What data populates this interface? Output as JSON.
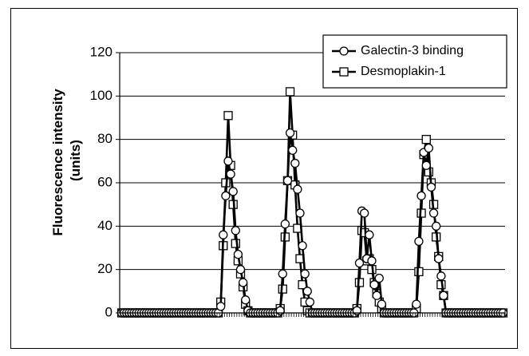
{
  "chart_data": {
    "type": "line",
    "title": "",
    "xlabel": "",
    "ylabel": "Fluorescence intensity (units)",
    "ylabel_lines": [
      "Fluorescence intensity",
      "(units)"
    ],
    "ylim": [
      0,
      120
    ],
    "yticks": [
      0,
      20,
      40,
      60,
      80,
      100,
      120
    ],
    "grid": "horizontal",
    "legend_position": "top-right",
    "n_points": 155,
    "series": [
      {
        "name": "Galectin-3 binding",
        "marker": "circle",
        "color": "#000000",
        "peaks": [
          {
            "start": 40,
            "values": [
              3,
              36,
              54,
              70,
              64,
              56,
              38,
              27,
              20,
              14,
              6,
              1
            ]
          },
          {
            "start": 64,
            "values": [
              1,
              18,
              41,
              61,
              83,
              75,
              69,
              57,
              46,
              31,
              18,
              10,
              5
            ]
          },
          {
            "start": 95,
            "values": [
              1,
              23,
              47,
              46,
              25,
              36,
              24,
              13,
              8,
              16,
              4
            ]
          },
          {
            "start": 119,
            "values": [
              4,
              33,
              54,
              74,
              68,
              76,
              58,
              46,
              40,
              25,
              17,
              8
            ]
          }
        ]
      },
      {
        "name": "Desmoplakin-1",
        "marker": "square",
        "color": "#000000",
        "peaks": [
          {
            "start": 40,
            "values": [
              5,
              31,
              60,
              91,
              68,
              50,
              32,
              24,
              18,
              12,
              4,
              1
            ]
          },
          {
            "start": 64,
            "values": [
              2,
              11,
              35,
              61,
              102,
              82,
              59,
              39,
              25,
              13,
              5,
              1
            ]
          },
          {
            "start": 95,
            "values": [
              2,
              14,
              38,
              37,
              24,
              25,
              20,
              14,
              9,
              5,
              2
            ]
          },
          {
            "start": 119,
            "values": [
              2,
              19,
              46,
              73,
              80,
              65,
              60,
              50,
              35,
              26,
              13,
              8
            ]
          }
        ]
      }
    ]
  }
}
